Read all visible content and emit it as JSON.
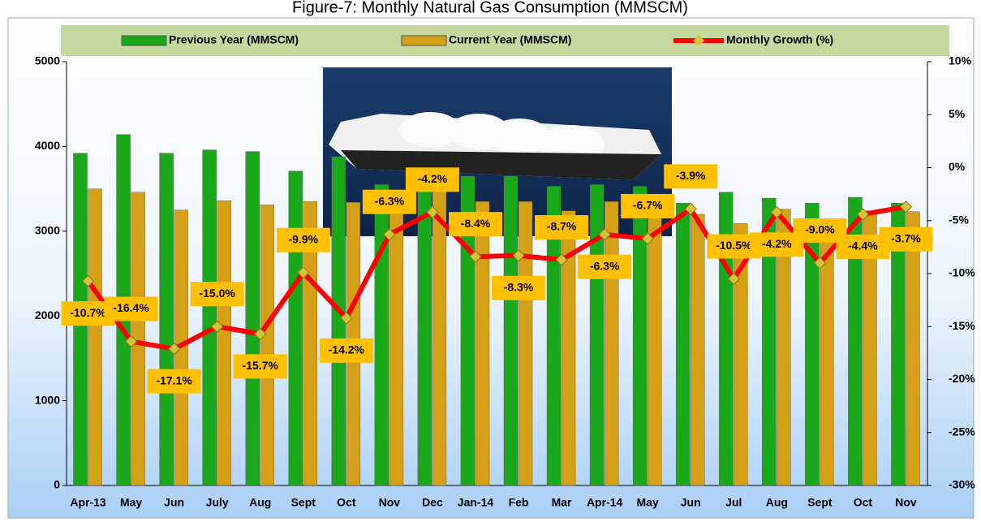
{
  "chart_data": {
    "type": "bar-line",
    "title": "Figure-7: Monthly Natural Gas Consumption (MMSCM)",
    "categories": [
      "Apr-13",
      "May",
      "Jun",
      "July",
      "Aug",
      "Sept",
      "Oct",
      "Nov",
      "Dec",
      "Jan-14",
      "Feb",
      "Mar",
      "Apr-14",
      "May",
      "Jun",
      "Jul",
      "Aug",
      "Sept",
      "Oct",
      "Nov"
    ],
    "series": [
      {
        "name": "Previous Year (MMSCM)",
        "color": "#1aa81a",
        "type": "bar",
        "values": [
          3920,
          4140,
          3920,
          3960,
          3940,
          3710,
          3880,
          3550,
          3710,
          3650,
          3650,
          3530,
          3550,
          3530,
          3330,
          3460,
          3390,
          3330,
          3400,
          3330
        ]
      },
      {
        "name": "Current Year (MMSCM)",
        "color": "#d4a017",
        "type": "bar",
        "values": [
          3500,
          3460,
          3250,
          3360,
          3310,
          3350,
          3340,
          3350,
          3550,
          3350,
          3350,
          3240,
          3350,
          3300,
          3200,
          3090,
          3260,
          3040,
          3240,
          3230
        ]
      },
      {
        "name": "Monthly Growth (%)",
        "color": "#ff0000",
        "type": "line",
        "axis": "y2",
        "values": [
          -10.7,
          -16.4,
          -17.1,
          -15.0,
          -15.7,
          -9.9,
          -14.2,
          -6.3,
          -4.2,
          -8.4,
          -8.3,
          -8.7,
          -6.3,
          -6.7,
          -3.9,
          -10.5,
          -4.2,
          -9.0,
          -4.4,
          -3.7
        ],
        "value_labels": [
          "-10.7%",
          "-16.4%",
          "-17.1%",
          "-15.0%",
          "-15.7%",
          "-9.9%",
          "-14.2%",
          "-6.3%",
          "-4.2%",
          "-8.4%",
          "-8.3%",
          "-8.7%",
          "-6.3%",
          "-6.7%",
          "-3.9%",
          "-10.5%",
          "-4.2%",
          "-9.0%",
          "-4.4%",
          "-3.7%"
        ]
      }
    ],
    "ylim": [
      0,
      5000
    ],
    "yticks": [
      0,
      1000,
      2000,
      3000,
      4000,
      5000
    ],
    "y2lim": [
      -30,
      10
    ],
    "y2ticks": [
      {
        "value": -30,
        "label": "-30%"
      },
      {
        "value": -25,
        "label": "-25%"
      },
      {
        "value": -20,
        "label": "-20%"
      },
      {
        "value": -15,
        "label": "-15%"
      },
      {
        "value": -10,
        "label": "-10%"
      },
      {
        "value": -5,
        "label": "-5%"
      },
      {
        "value": 0,
        "label": "0%"
      },
      {
        "value": 5,
        "label": "5%"
      },
      {
        "value": 10,
        "label": "10%"
      }
    ],
    "legend": "top"
  }
}
